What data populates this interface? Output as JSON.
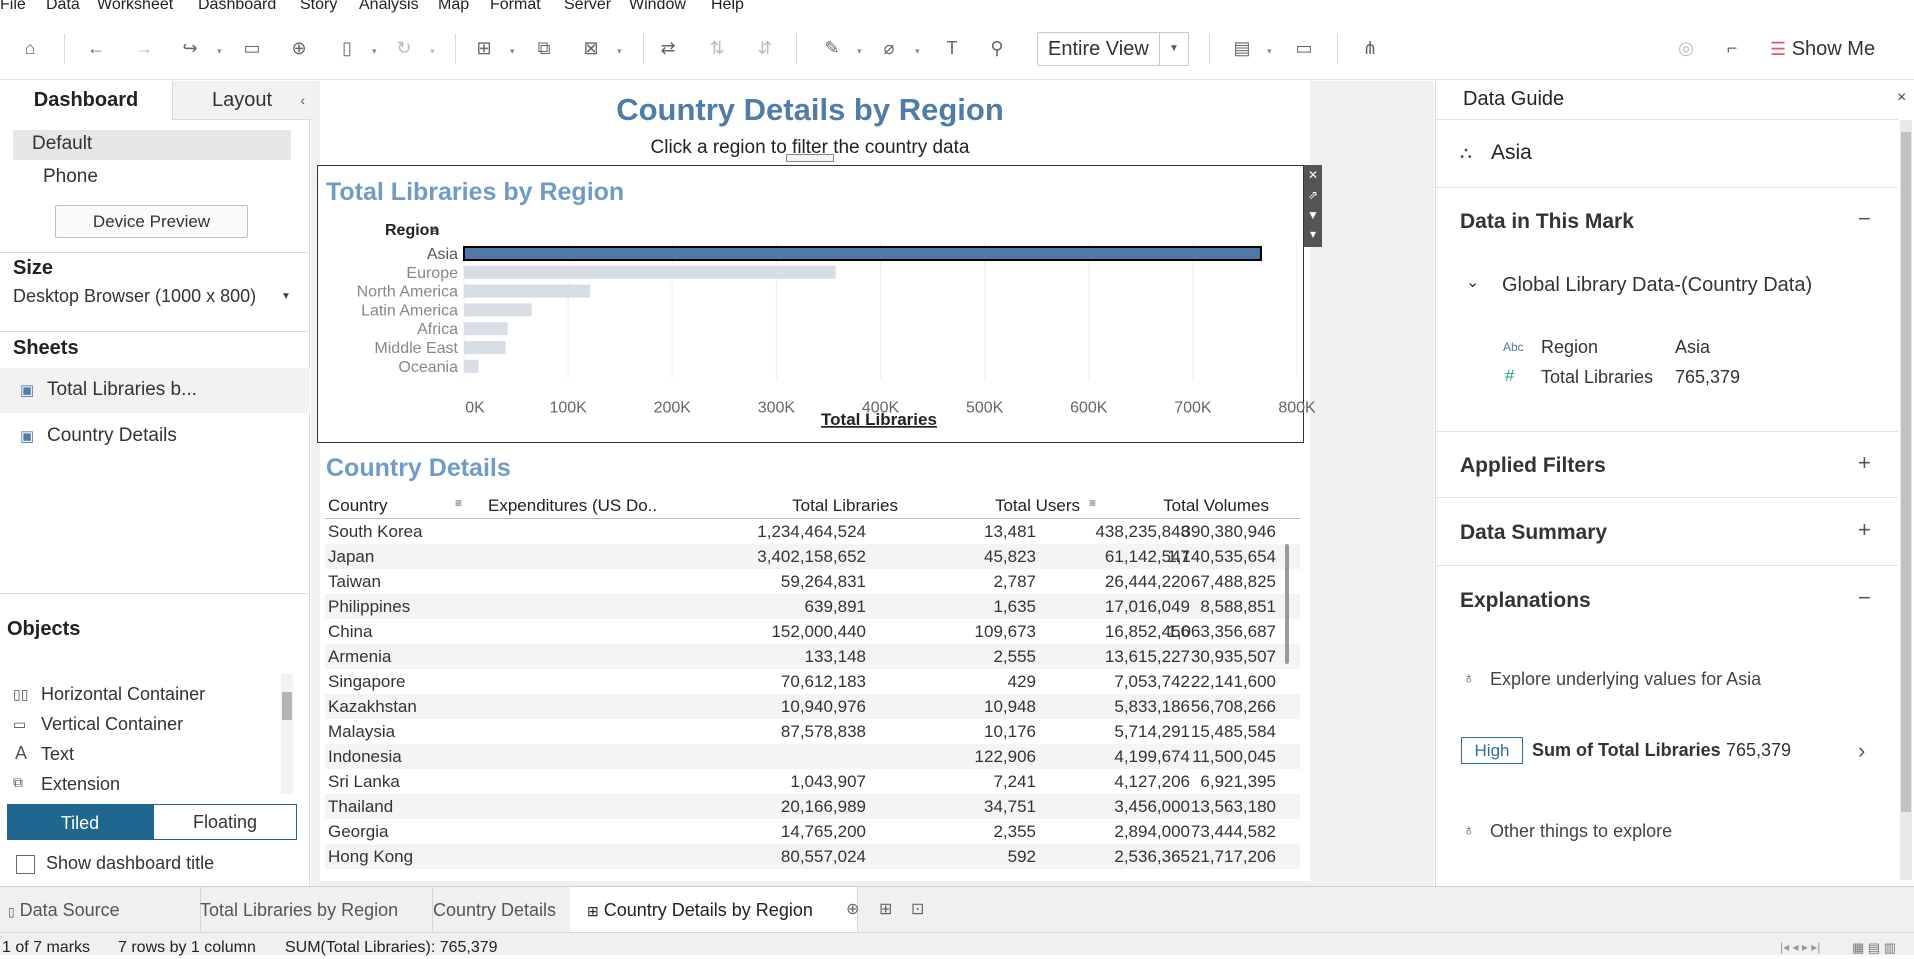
{
  "menu": [
    "File",
    "Data",
    "Worksheet",
    "Dashboard",
    "Story",
    "Analysis",
    "Map",
    "Format",
    "Server",
    "Window",
    "Help"
  ],
  "toolbar": {
    "view_select": "Entire View",
    "show_me": "Show Me"
  },
  "left_pane": {
    "tabs": [
      "Dashboard",
      "Layout"
    ],
    "device": {
      "default": "Default",
      "phone": "Phone",
      "preview_button": "Device Preview"
    },
    "size": {
      "title": "Size",
      "value": "Desktop Browser (1000 x 800)"
    },
    "sheets": {
      "title": "Sheets",
      "items": [
        "Total Libraries b...",
        "Country Details"
      ]
    },
    "objects": {
      "title": "Objects",
      "items": [
        "Horizontal Container",
        "Vertical Container",
        "Text",
        "Extension"
      ],
      "tiled": "Tiled",
      "floating": "Floating",
      "show_title": "Show dashboard title"
    }
  },
  "dashboard": {
    "title": "Country Details by Region",
    "subtitle": "Click a region to filter the country data"
  },
  "chart_data": {
    "type": "bar",
    "orientation": "horizontal",
    "title": "Total Libraries by Region",
    "ylabel": "Region",
    "xlabel": "Total Libraries",
    "categories": [
      "Asia",
      "Europe",
      "North America",
      "Latin America",
      "Africa",
      "Middle East",
      "Oceania"
    ],
    "values": [
      765379,
      357000,
      121000,
      65000,
      42000,
      40000,
      14000
    ],
    "selected": "Asia",
    "xlim": [
      0,
      800000
    ],
    "xticks": [
      "0K",
      "100K",
      "200K",
      "300K",
      "400K",
      "500K",
      "600K",
      "700K",
      "800K"
    ],
    "colors": {
      "selected": "#4e79a7",
      "unselected": "#d8dee6"
    }
  },
  "table": {
    "title": "Country Details",
    "columns": [
      "Country",
      "Expenditures (US Do..",
      "Total Libraries",
      "Total Users",
      "Total Volumes"
    ],
    "rows": [
      [
        "South Korea",
        "1,234,464,524",
        "13,481",
        "438,235,848",
        "390,380,946"
      ],
      [
        "Japan",
        "3,402,158,652",
        "45,823",
        "61,142,547",
        "1,140,535,654"
      ],
      [
        "Taiwan",
        "59,264,831",
        "2,787",
        "26,444,220",
        "67,488,825"
      ],
      [
        "Philippines",
        "639,891",
        "1,635",
        "17,016,049",
        "8,588,851"
      ],
      [
        "China",
        "152,000,440",
        "109,673",
        "16,852,456",
        "1,063,356,687"
      ],
      [
        "Armenia",
        "133,148",
        "2,555",
        "13,615,227",
        "30,935,507"
      ],
      [
        "Singapore",
        "70,612,183",
        "429",
        "7,053,742",
        "22,141,600"
      ],
      [
        "Kazakhstan",
        "10,940,976",
        "10,948",
        "5,833,186",
        "56,708,266"
      ],
      [
        "Malaysia",
        "87,578,838",
        "10,176",
        "5,714,291",
        "15,485,584"
      ],
      [
        "Indonesia",
        "",
        "122,906",
        "4,199,674",
        "11,500,045"
      ],
      [
        "Sri Lanka",
        "1,043,907",
        "7,241",
        "4,127,206",
        "6,921,395"
      ],
      [
        "Thailand",
        "20,166,989",
        "34,751",
        "3,456,000",
        "13,563,180"
      ],
      [
        "Georgia",
        "14,765,200",
        "2,355",
        "2,894,000",
        "73,444,582"
      ],
      [
        "Hong Kong",
        "80,557,024",
        "592",
        "2,536,365",
        "21,717,206"
      ]
    ]
  },
  "data_guide": {
    "title": "Data Guide",
    "mark": "Asia",
    "data_in_mark": "Data in This Mark",
    "source": "Global Library Data-(Country Data)",
    "fields": [
      {
        "type": "Abc",
        "name": "Region",
        "value": "Asia"
      },
      {
        "type": "#",
        "name": "Total Libraries",
        "value": "765,379"
      }
    ],
    "applied_filters": "Applied Filters",
    "data_summary": "Data Summary",
    "explanations": "Explanations",
    "explore_text": "Explore underlying values for Asia",
    "badge": "High",
    "sum_text": "Sum of Total Libraries",
    "sum_value": "765,379",
    "other_text": "Other things to explore"
  },
  "sheet_tabs": [
    "Data Source",
    "Total Libraries by Region",
    "Country Details",
    "Country Details by Region"
  ],
  "status": {
    "marks": "1 of 7 marks",
    "rows": "7 rows by 1 column",
    "sum": "SUM(Total Libraries): 765,379"
  }
}
